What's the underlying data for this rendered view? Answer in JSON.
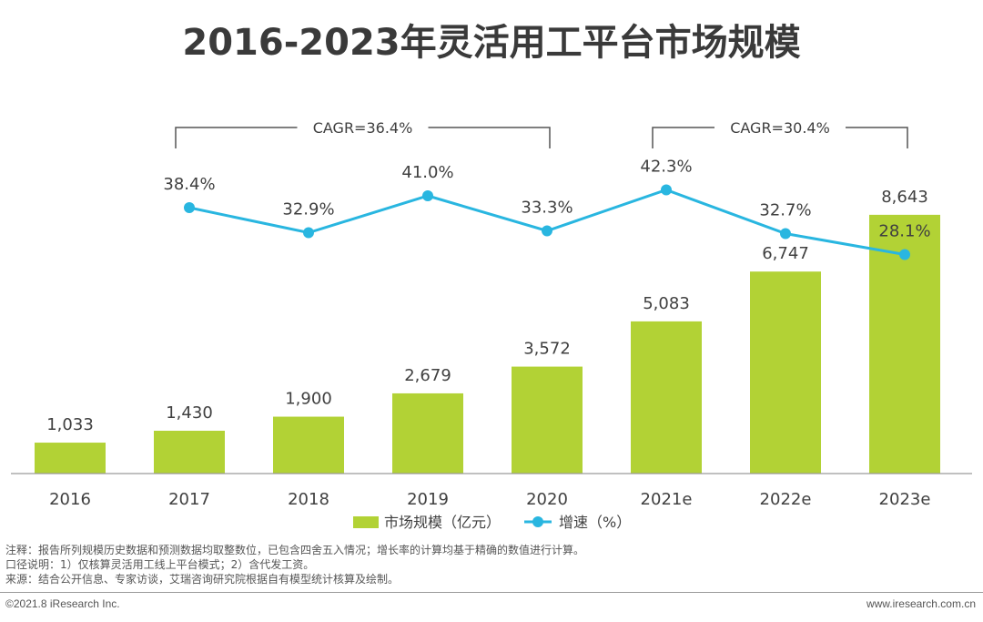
{
  "chart_data": {
    "type": "bar",
    "title": "2016-2023年灵活用工平台市场规模",
    "categories": [
      "2016",
      "2017",
      "2018",
      "2019",
      "2020",
      "2021e",
      "2022e",
      "2023e"
    ],
    "series": [
      {
        "name": "市场规模（亿元）",
        "type": "bar",
        "values": [
          1033,
          1430,
          1900,
          2679,
          3572,
          5083,
          6747,
          8643
        ],
        "labels": [
          "1,033",
          "1,430",
          "1,900",
          "2,679",
          "3,572",
          "5,083",
          "6,747",
          "8,643"
        ],
        "color": "#b2d235"
      },
      {
        "name": "增速（%）",
        "type": "line",
        "values": [
          null,
          38.4,
          32.9,
          41.0,
          33.3,
          42.3,
          32.7,
          28.1
        ],
        "labels": [
          "",
          "38.4%",
          "32.9%",
          "41.0%",
          "33.3%",
          "42.3%",
          "32.7%",
          "28.1%"
        ],
        "color": "#29b6e0"
      }
    ],
    "ylim": [
      0,
      10000
    ],
    "growth_ylim": [
      0,
      50
    ],
    "xlabel": "",
    "ylabel": "",
    "grid": false,
    "legend_position": "bottom",
    "annotations": [
      {
        "text": "CAGR=36.4%",
        "from": "2017",
        "to": "2020"
      },
      {
        "text": "CAGR=30.4%",
        "from": "2021e",
        "to": "2023e"
      }
    ]
  },
  "notes": [
    "注释：报告所列规模历史数据和预测数据均取整数位，已包含四舍五入情况；增长率的计算均基于精确的数值进行计算。",
    "口径说明：1）仅核算灵活用工线上平台模式；2）含代发工资。",
    "来源：结合公开信息、专家访谈，艾瑞咨询研究院根据自有模型统计核算及绘制。"
  ],
  "footer": {
    "copyright": "©2021.8 iResearch Inc.",
    "website": "www.iresearch.com.cn"
  }
}
